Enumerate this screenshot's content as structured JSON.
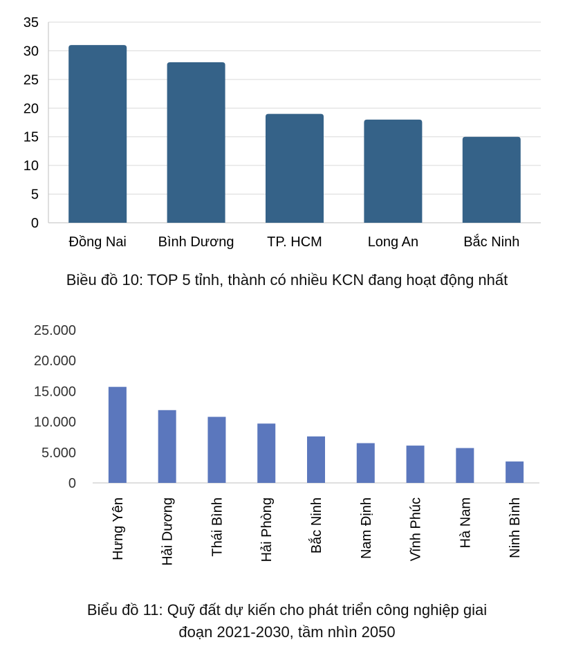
{
  "chart_data": [
    {
      "type": "bar",
      "categories": [
        "Đồng Nai",
        "Bình Dương",
        "TP. HCM",
        "Long An",
        "Bắc Ninh"
      ],
      "values": [
        31,
        28,
        19,
        18,
        15
      ],
      "ylim": [
        0,
        35
      ],
      "yticks": [
        "0",
        "5",
        "10",
        "15",
        "20",
        "25",
        "30",
        "35"
      ],
      "grid": true,
      "colors": {
        "bar": "#356288",
        "grid": "#d9d9d9",
        "axis": "#bfbfbf"
      },
      "caption": "Biều đồ 10: TOP 5 tỉnh, thành có nhiều KCN đang hoạt động nhất"
    },
    {
      "type": "bar",
      "categories": [
        "Hưng Yên",
        "Hải Dương",
        "Thái Bình",
        "Hải Phòng",
        "Bắc Ninh",
        "Nam Định",
        "Vĩnh Phúc",
        "Hà Nam",
        "Ninh Bình"
      ],
      "values": [
        15700,
        11900,
        10800,
        9700,
        7600,
        6500,
        6100,
        5700,
        3500
      ],
      "ylim": [
        0,
        25000
      ],
      "yticks": [
        "0",
        "5.000",
        "10.000",
        "15.000",
        "20.000",
        "25.000"
      ],
      "grid": false,
      "colors": {
        "bar": "#5b77bd",
        "axis": "#bfbfbf"
      },
      "caption_lines": [
        "Biểu đồ 11: Quỹ đất dự kiến cho phát triển công nghiệp giai",
        "đoạn 2021-2030, tầm nhìn 2050"
      ]
    }
  ]
}
